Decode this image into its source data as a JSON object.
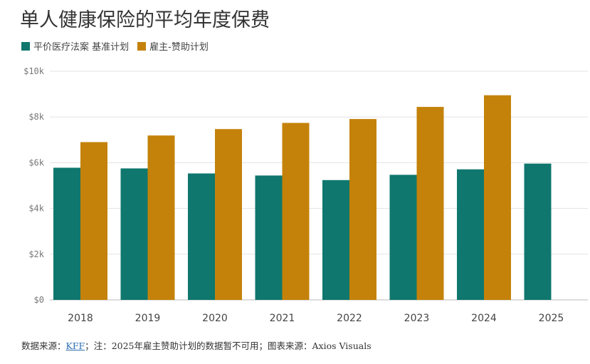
{
  "title": "单人健康保险的平均年度保费",
  "legend": [
    {
      "label": "平价医疗法案 基准计划",
      "color": "#0f776e"
    },
    {
      "label": "雇主-赞助计划",
      "color": "#c4820a"
    }
  ],
  "source_note": {
    "prefix": "数据来源：",
    "link": "KFF",
    "suffix": "；注：2025年雇主赞助计划的数据暂不可用；图表来源：Axios Visuals"
  },
  "chart_data": {
    "type": "bar",
    "title": "单人健康保险的平均年度保费",
    "xlabel": "",
    "ylabel": "",
    "categories": [
      "2018",
      "2019",
      "2020",
      "2021",
      "2022",
      "2023",
      "2024",
      "2025"
    ],
    "series": [
      {
        "name": "平价医疗法案 基准计划",
        "color": "#0f776e",
        "values": [
          5780,
          5750,
          5530,
          5440,
          5240,
          5470,
          5710,
          5960
        ]
      },
      {
        "name": "雇主-赞助计划",
        "color": "#c4820a",
        "values": [
          6900,
          7190,
          7470,
          7740,
          7910,
          8440,
          8950,
          null
        ]
      }
    ],
    "ylim": [
      0,
      10000
    ],
    "yticks": [
      0,
      2000,
      4000,
      6000,
      8000,
      10000
    ],
    "ytick_labels": [
      "$0",
      "$2k",
      "$4k",
      "$6k",
      "$8k",
      "$10k"
    ],
    "grid": true,
    "legend_position": "top-left"
  }
}
